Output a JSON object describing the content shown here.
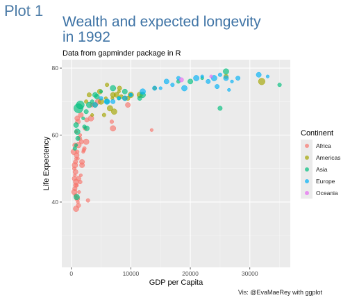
{
  "slide_label": "Plot 1",
  "chart_data": {
    "type": "scatter",
    "title": "Wealth and expected longevity\n in 1992",
    "subtitle": "Data from gapminder package in R",
    "xlabel": "GDP per Capita",
    "ylabel": "Life Expectency",
    "caption": "Vis: @EvaMaeRey with ggplot",
    "xlim": [
      -1600,
      36800
    ],
    "ylim": [
      20.5,
      82.5
    ],
    "x_ticks": [
      0,
      10000,
      20000,
      30000
    ],
    "x_tick_labels": [
      "0",
      "10000",
      "20000",
      "30000"
    ],
    "y_ticks": [
      40,
      60,
      80
    ],
    "y_tick_labels": [
      "40",
      "60",
      "80"
    ],
    "grid": true,
    "legend_position": "right",
    "legend_title": "Continent",
    "series": [
      {
        "name": "Africa",
        "color": "#F8766D",
        "points": [
          [
            1500,
            60
          ],
          [
            1400,
            59
          ],
          [
            1200,
            57
          ],
          [
            1000,
            55
          ],
          [
            900,
            54
          ],
          [
            800,
            53
          ],
          [
            700,
            52
          ],
          [
            600,
            51
          ],
          [
            500,
            50
          ],
          [
            700,
            49
          ],
          [
            600,
            48
          ],
          [
            500,
            47
          ],
          [
            800,
            46
          ],
          [
            900,
            45
          ],
          [
            1200,
            47
          ],
          [
            1600,
            48
          ],
          [
            600,
            44
          ],
          [
            500,
            43
          ],
          [
            700,
            42
          ],
          [
            1000,
            41
          ],
          [
            1100,
            40
          ],
          [
            1200,
            39
          ],
          [
            800,
            38
          ],
          [
            2800,
            40.5
          ],
          [
            1800,
            52
          ],
          [
            2000,
            55
          ],
          [
            1700,
            58
          ],
          [
            2500,
            58
          ],
          [
            2300,
            62
          ],
          [
            1100,
            64
          ],
          [
            800,
            61
          ],
          [
            600,
            57
          ],
          [
            400,
            55
          ],
          [
            1500,
            46
          ],
          [
            1800,
            51
          ],
          [
            1300,
            43
          ],
          [
            2600,
            64.5
          ],
          [
            3300,
            65
          ],
          [
            2100,
            55.5
          ],
          [
            1000,
            65
          ],
          [
            1100,
            53
          ],
          [
            700,
            45
          ],
          [
            7000,
            62
          ],
          [
            6800,
            64
          ],
          [
            9500,
            69
          ],
          [
            13500,
            61.5
          ],
          [
            3500,
            69
          ],
          [
            4500,
            70
          ],
          [
            2200,
            56
          ],
          [
            1600,
            66
          ]
        ]
      },
      {
        "name": "Americas",
        "color": "#A3A500",
        "points": [
          [
            32000,
            76
          ],
          [
            26000,
            77.5
          ],
          [
            5000,
            70
          ],
          [
            6000,
            75
          ],
          [
            7000,
            72
          ],
          [
            8000,
            73
          ],
          [
            9000,
            71
          ],
          [
            6500,
            68
          ],
          [
            5500,
            66
          ],
          [
            4000,
            69
          ],
          [
            3500,
            66
          ],
          [
            3000,
            72
          ],
          [
            7200,
            67
          ],
          [
            2500,
            70
          ],
          [
            4800,
            73
          ],
          [
            6900,
            71
          ],
          [
            9500,
            71
          ],
          [
            10000,
            72
          ],
          [
            8400,
            71.5
          ],
          [
            7600,
            72
          ],
          [
            5800,
            71
          ],
          [
            8100,
            74
          ],
          [
            11500,
            72
          ],
          [
            14000,
            74
          ]
        ]
      },
      {
        "name": "Asia",
        "color": "#00BF7D",
        "points": [
          [
            1500,
            69
          ],
          [
            1200,
            68
          ],
          [
            1000,
            61
          ],
          [
            600,
            56
          ],
          [
            800,
            63
          ],
          [
            2000,
            65
          ],
          [
            2500,
            67
          ],
          [
            3000,
            69
          ],
          [
            3500,
            70
          ],
          [
            4000,
            72
          ],
          [
            5000,
            73
          ],
          [
            6000,
            70
          ],
          [
            7000,
            74
          ],
          [
            8000,
            71
          ],
          [
            9000,
            73
          ],
          [
            10000,
            72
          ],
          [
            11500,
            71
          ],
          [
            12000,
            72
          ],
          [
            18000,
            76
          ],
          [
            20000,
            76
          ],
          [
            22000,
            77
          ],
          [
            25000,
            68
          ],
          [
            26000,
            79
          ],
          [
            35000,
            75
          ],
          [
            2600,
            62
          ],
          [
            800,
            57
          ],
          [
            1100,
            59
          ],
          [
            900,
            41.5
          ],
          [
            2200,
            62.5
          ],
          [
            4300,
            71.5
          ]
        ]
      },
      {
        "name": "Europe",
        "color": "#00B0F6",
        "points": [
          [
            22000,
            77.5
          ],
          [
            23000,
            76
          ],
          [
            24000,
            77
          ],
          [
            25000,
            78
          ],
          [
            26000,
            77
          ],
          [
            27000,
            76
          ],
          [
            28000,
            77
          ],
          [
            21000,
            77
          ],
          [
            18000,
            77
          ],
          [
            16000,
            76
          ],
          [
            15000,
            74
          ],
          [
            14000,
            74
          ],
          [
            12000,
            73
          ],
          [
            10000,
            72
          ],
          [
            9000,
            71
          ],
          [
            8000,
            71
          ],
          [
            7000,
            70
          ],
          [
            6000,
            70
          ],
          [
            5000,
            71
          ],
          [
            4000,
            69
          ],
          [
            26500,
            73.5
          ],
          [
            24500,
            74.5
          ],
          [
            19000,
            74
          ],
          [
            17000,
            75
          ],
          [
            31500,
            78
          ],
          [
            33000,
            77.5
          ]
        ]
      },
      {
        "name": "Oceania",
        "color": "#E76BF3",
        "points": [
          [
            23500,
            77.5
          ],
          [
            18500,
            76.5
          ]
        ]
      }
    ]
  }
}
